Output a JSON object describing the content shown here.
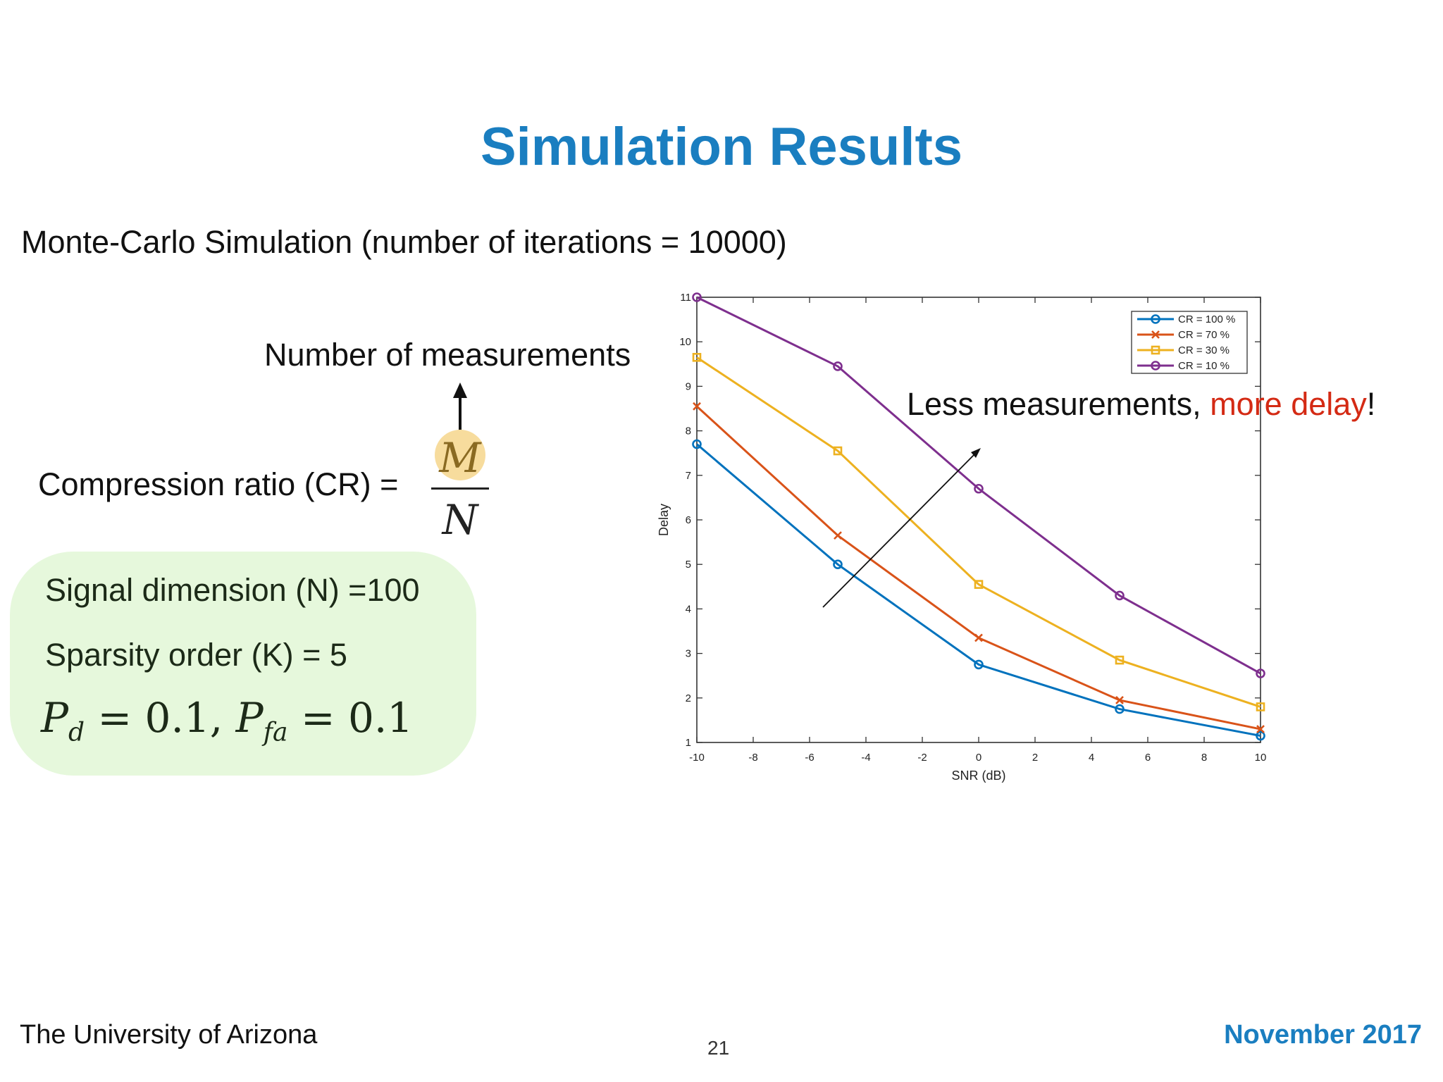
{
  "slide": {
    "title": "Simulation Results",
    "subtitle": "Monte-Carlo Simulation (number of iterations = 10000)",
    "measurements_label": "Number of measurements",
    "cr_label": "Compression ratio (CR) =",
    "fraction": {
      "numerator": "M",
      "denominator": "N"
    },
    "params": {
      "signal_dimension": "Signal dimension (N) =100",
      "sparsity": "Sparsity order (K) = 5",
      "pd_symbol": "P",
      "pd_sub": "d",
      "pd_value": "= 0.1,",
      "pfa_symbol": "P",
      "pfa_sub": "fa",
      "pfa_value": "= 0.1"
    },
    "callout": {
      "text_before": "Less measurements, ",
      "text_red": "more delay",
      "text_after": "!"
    },
    "footer": {
      "left": "The University of Arizona",
      "page": "21",
      "right": "November 2017"
    }
  },
  "colors": {
    "title": "#1a7ec0",
    "highlight_red": "#d42a14",
    "green_box": "#e6f8dc",
    "m_highlight": "#f7dc9d"
  },
  "chart_data": {
    "type": "line",
    "xlabel": "SNR (dB)",
    "ylabel": "Delay",
    "xlim": [
      -10,
      10
    ],
    "ylim": [
      1,
      11
    ],
    "xticks": [
      -10,
      -8,
      -6,
      -4,
      -2,
      0,
      2,
      4,
      6,
      8,
      10
    ],
    "yticks": [
      1,
      2,
      3,
      4,
      5,
      6,
      7,
      8,
      9,
      10,
      11
    ],
    "grid": false,
    "legend_position": "top-right",
    "x": [
      -10,
      -5,
      0,
      5,
      10
    ],
    "series": [
      {
        "name": "CR = 100 %",
        "color": "#0072bd",
        "marker": "circle",
        "values": [
          7.7,
          5.0,
          2.75,
          1.75,
          1.15
        ]
      },
      {
        "name": "CR = 70 %",
        "color": "#d95319",
        "marker": "x",
        "values": [
          8.55,
          5.65,
          3.35,
          1.95,
          1.3
        ]
      },
      {
        "name": "CR = 30 %",
        "color": "#edb120",
        "marker": "square",
        "values": [
          9.65,
          7.55,
          4.55,
          2.85,
          1.8
        ]
      },
      {
        "name": "CR = 10 %",
        "color": "#7e2f8e",
        "marker": "circle",
        "values": [
          11.0,
          9.45,
          6.7,
          4.3,
          2.55
        ]
      }
    ]
  }
}
